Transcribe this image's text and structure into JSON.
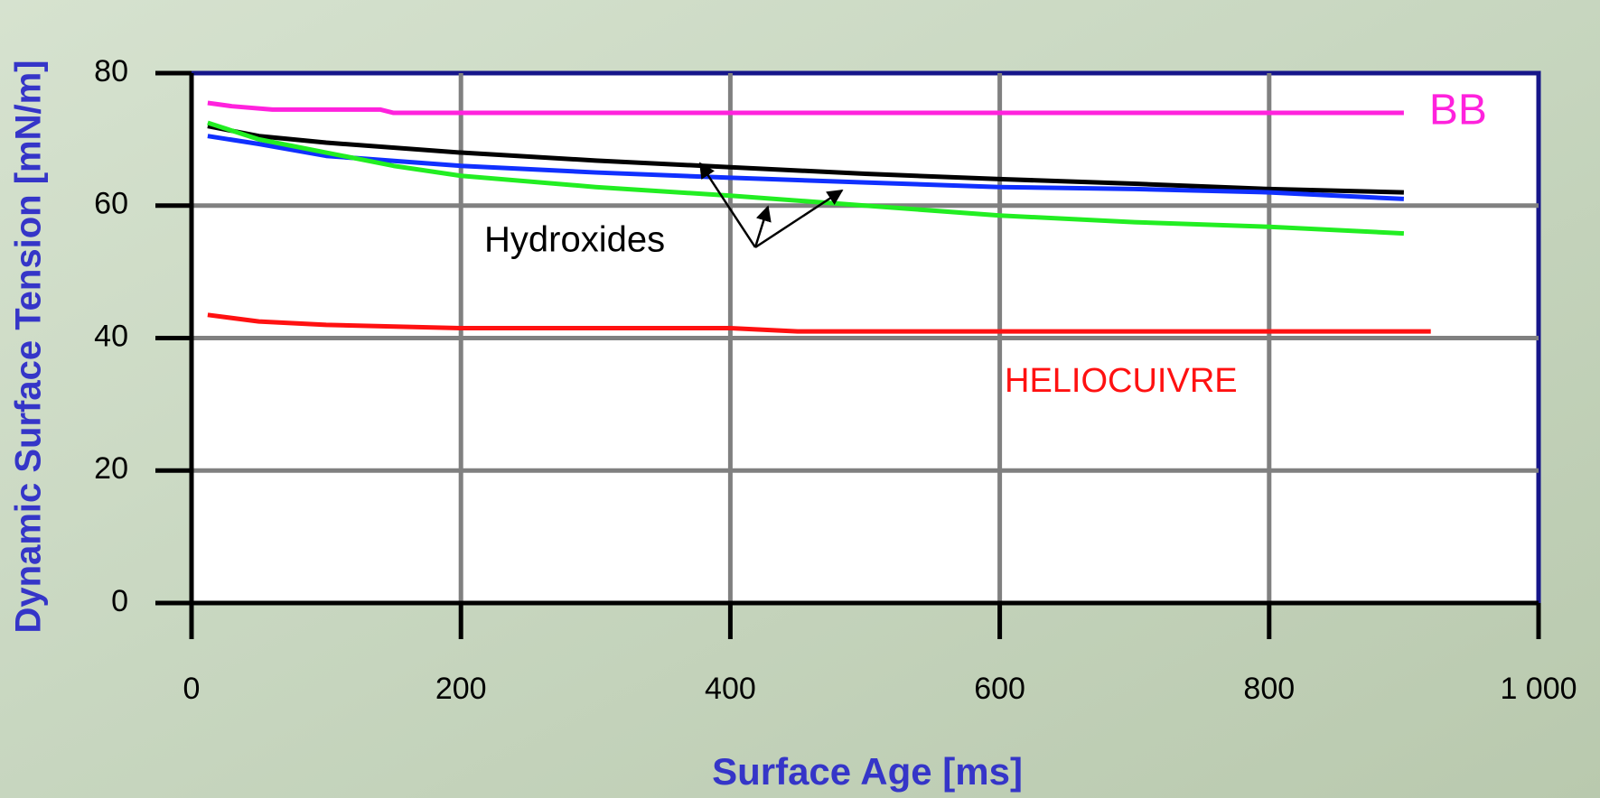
{
  "chart_data": {
    "type": "line",
    "x_label": "Surface Age [ms]",
    "y_label": "Dynamic Surface Tension [mN/m]",
    "annotation": "Hydroxides",
    "xlim": [
      0,
      1000
    ],
    "ylim": [
      0,
      80
    ],
    "xticks": [
      0,
      200,
      400,
      600,
      800,
      {
        "value": 1000,
        "label": "1 000"
      }
    ],
    "yticks": [
      0,
      20,
      40,
      60,
      80
    ],
    "grid": true,
    "series": [
      {
        "name": "BB",
        "color": "#ff22dd",
        "x": [
          12,
          30,
          60,
          140,
          150,
          900
        ],
        "values": [
          75.5,
          75,
          74.5,
          74.5,
          74,
          74
        ]
      },
      {
        "color": "#000000",
        "x": [
          12,
          50,
          100,
          200,
          300,
          400,
          500,
          600,
          700,
          800,
          900
        ],
        "values": [
          72,
          70.5,
          69.5,
          68,
          66.8,
          65.8,
          64.8,
          64,
          63.3,
          62.5,
          62
        ]
      },
      {
        "color": "#1030ff",
        "x": [
          12,
          50,
          100,
          200,
          300,
          400,
          500,
          600,
          700,
          800,
          900
        ],
        "values": [
          70.5,
          69.3,
          67.5,
          66,
          65,
          64.2,
          63.5,
          62.8,
          62.5,
          62,
          61
        ]
      },
      {
        "color": "#22ee22",
        "x": [
          12,
          50,
          100,
          150,
          200,
          300,
          400,
          500,
          600,
          700,
          800,
          900
        ],
        "values": [
          72.5,
          70,
          68,
          66,
          64.5,
          62.8,
          61.5,
          60,
          58.5,
          57.5,
          56.8,
          55.8
        ]
      },
      {
        "name": "HELIOCUIVRE",
        "color": "#ff1111",
        "x": [
          12,
          50,
          100,
          200,
          300,
          400,
          450,
          600,
          800,
          920
        ],
        "values": [
          43.5,
          42.5,
          42,
          41.5,
          41.5,
          41.5,
          41,
          41,
          41,
          41
        ]
      }
    ]
  }
}
